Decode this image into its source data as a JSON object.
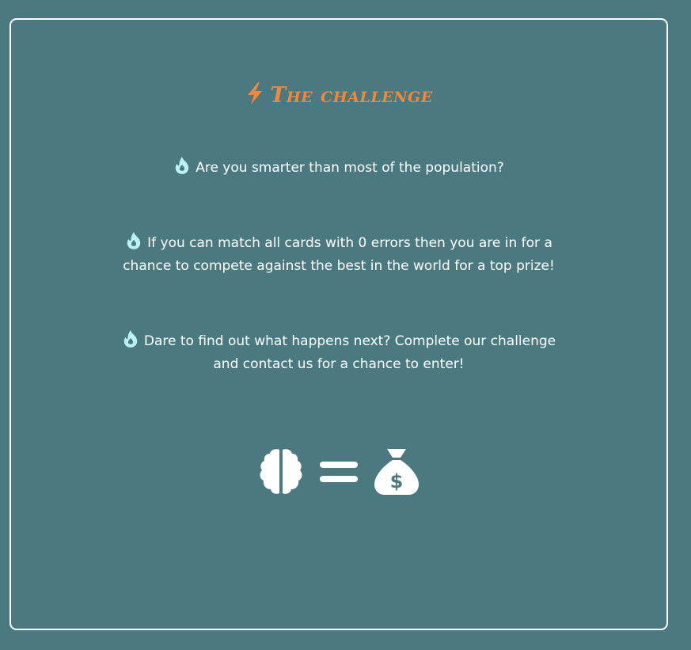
{
  "title": {
    "icon": "lightning-bolt-icon",
    "text": "The challenge",
    "color": "#f4873a"
  },
  "paragraphs": [
    {
      "icon": "fire-icon",
      "lines": [
        "Are you smarter than most of the population?"
      ]
    },
    {
      "icon": "fire-icon",
      "lines": [
        "If you can match all cards with 0 errors then you are in for a",
        "chance to compete against the best in the world for a top prize!"
      ]
    },
    {
      "icon": "fire-icon",
      "lines": [
        "Dare to find out what happens next? Complete our challenge",
        "and contact us for a chance to enter!"
      ]
    }
  ],
  "equation": {
    "left_icon": "brain-icon",
    "operator_icon": "equals-icon",
    "right_icon": "money-bag-icon"
  },
  "colors": {
    "background": "#4a7a80",
    "border": "#ffffff",
    "accent": "#f4873a",
    "fire_icon": "#b9f3f4",
    "text": "#ffffff"
  }
}
